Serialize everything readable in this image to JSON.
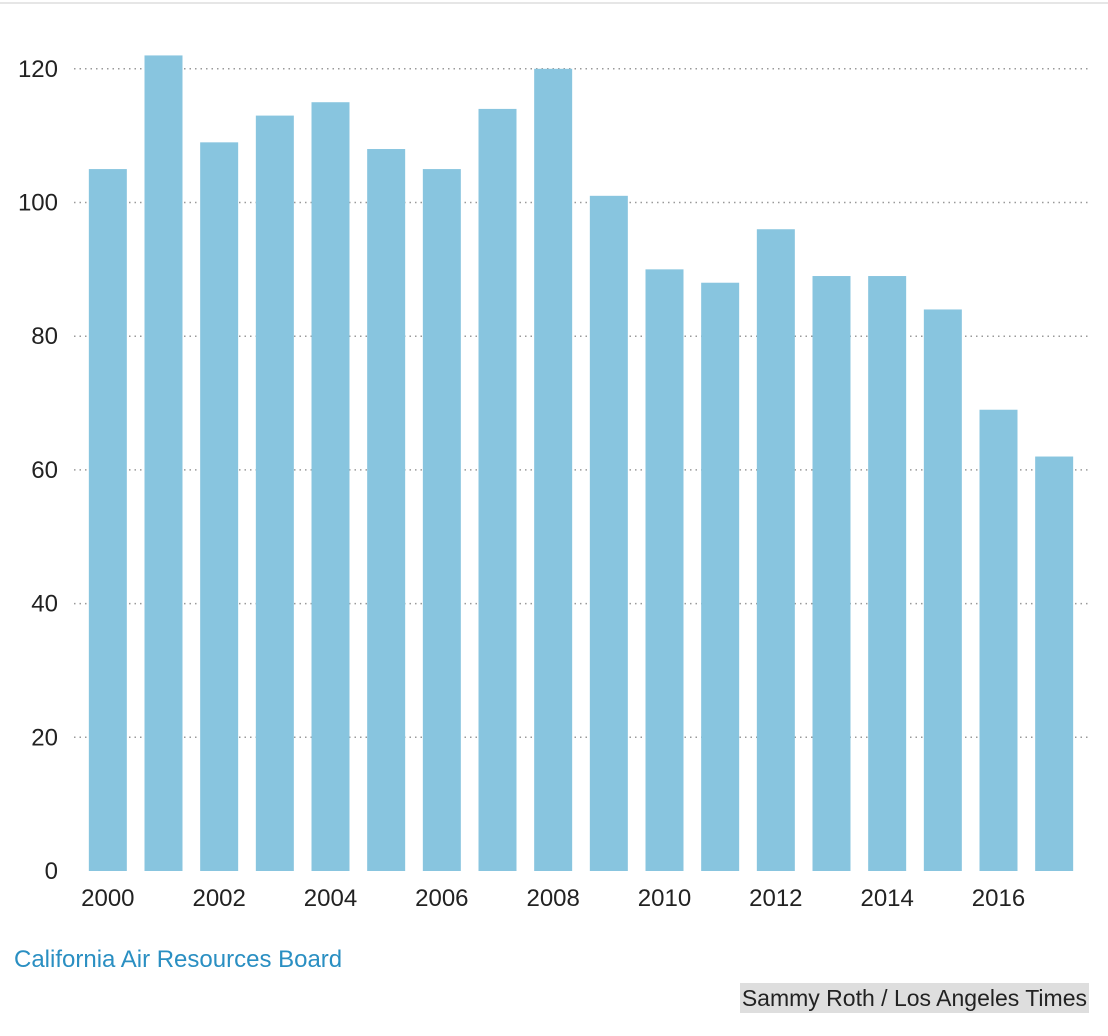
{
  "chart_data": {
    "type": "bar",
    "categories": [
      "2000",
      "2001",
      "2002",
      "2003",
      "2004",
      "2005",
      "2006",
      "2007",
      "2008",
      "2009",
      "2010",
      "2011",
      "2012",
      "2013",
      "2014",
      "2015",
      "2016",
      "2017"
    ],
    "values": [
      105,
      122,
      109,
      113,
      115,
      108,
      105,
      114,
      120,
      101,
      90,
      88,
      96,
      89,
      89,
      84,
      69,
      62
    ],
    "x_tick_labels": [
      "2000",
      "2002",
      "2004",
      "2006",
      "2008",
      "2010",
      "2012",
      "2014",
      "2016"
    ],
    "y_ticks": [
      0,
      20,
      40,
      60,
      80,
      100,
      120
    ],
    "ylim": [
      0,
      125
    ],
    "grid": true,
    "bar_color": "#88c5df",
    "grid_color": "#999999"
  },
  "source": {
    "label": "California Air Resources Board"
  },
  "credit": {
    "label": "Sammy Roth / Los Angeles Times"
  }
}
